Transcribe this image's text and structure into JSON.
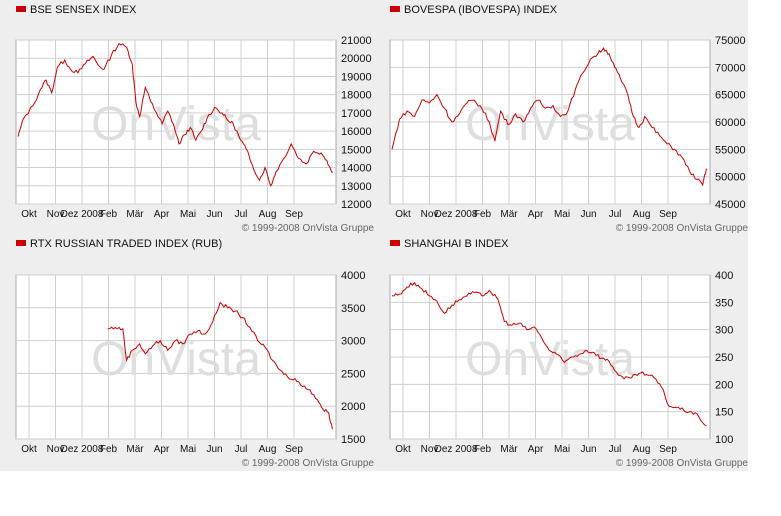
{
  "copyright": "© 1999-2008 OnVista Gruppe",
  "watermark": "OnVista",
  "colors": {
    "line": "#cc0000",
    "swatch": "#cc0000",
    "grid": "#cfcfcf",
    "frame": "#aaaaaa",
    "panel_bg": "#eeeeee",
    "plot_bg": "#ffffff",
    "watermark": "#dedede"
  },
  "chart_data": [
    {
      "type": "line",
      "title": "BSE SENSEX INDEX",
      "x_ticks": [
        "Okt",
        "Nov",
        "Dez 2008",
        "Feb",
        "Mär",
        "Apr",
        "Mai",
        "Jun",
        "Jul",
        "Aug",
        "Sep"
      ],
      "y_ticks": [
        21000,
        20000,
        19000,
        18000,
        17000,
        16000,
        15000,
        14000,
        13000,
        12000
      ],
      "ylim": [
        12000,
        21000
      ],
      "grid": true,
      "series": [
        {
          "points": [
            [
              0,
              15700
            ],
            [
              0.3,
              16700
            ],
            [
              0.8,
              17400
            ],
            [
              1.2,
              18300
            ],
            [
              1.5,
              18800
            ],
            [
              1.8,
              18100
            ],
            [
              2.1,
              19500
            ],
            [
              2.5,
              19900
            ],
            [
              2.8,
              19400
            ],
            [
              3.2,
              19200
            ],
            [
              3.6,
              19700
            ],
            [
              4.0,
              20100
            ],
            [
              4.3,
              19600
            ],
            [
              4.6,
              19400
            ],
            [
              5.0,
              20200
            ],
            [
              5.4,
              20800
            ],
            [
              5.8,
              20600
            ],
            [
              6.1,
              19700
            ],
            [
              6.3,
              17600
            ],
            [
              6.5,
              16800
            ],
            [
              6.8,
              18400
            ],
            [
              7.1,
              17600
            ],
            [
              7.4,
              17000
            ],
            [
              7.7,
              16400
            ],
            [
              8.0,
              17100
            ],
            [
              8.3,
              16400
            ],
            [
              8.6,
              15300
            ],
            [
              8.9,
              15800
            ],
            [
              9.2,
              16200
            ],
            [
              9.5,
              15500
            ],
            [
              9.8,
              16000
            ],
            [
              10.1,
              16700
            ],
            [
              10.5,
              17300
            ],
            [
              10.9,
              17000
            ],
            [
              11.2,
              16600
            ],
            [
              11.5,
              16400
            ],
            [
              11.9,
              15500
            ],
            [
              12.2,
              15000
            ],
            [
              12.5,
              14200
            ],
            [
              12.9,
              13300
            ],
            [
              13.2,
              14000
            ],
            [
              13.5,
              13000
            ],
            [
              13.8,
              13800
            ],
            [
              14.2,
              14500
            ],
            [
              14.6,
              15300
            ],
            [
              15.0,
              14500
            ],
            [
              15.4,
              14200
            ],
            [
              15.8,
              14900
            ],
            [
              16.2,
              14800
            ],
            [
              16.5,
              14400
            ],
            [
              16.8,
              13700
            ]
          ]
        }
      ]
    },
    {
      "type": "line",
      "title": "BOVESPA (IBOVESPA) INDEX",
      "x_ticks": [
        "Okt",
        "Nov",
        "Dez 2008",
        "Feb",
        "Mär",
        "Apr",
        "Mai",
        "Jun",
        "Jul",
        "Aug",
        "Sep"
      ],
      "y_ticks": [
        75000,
        70000,
        65000,
        60000,
        55000,
        50000,
        45000
      ],
      "ylim": [
        45000,
        75000
      ],
      "grid": true,
      "series": [
        {
          "points": [
            [
              0,
              55000
            ],
            [
              0.4,
              60500
            ],
            [
              0.8,
              62000
            ],
            [
              1.2,
              61000
            ],
            [
              1.6,
              64000
            ],
            [
              2.0,
              63500
            ],
            [
              2.4,
              65000
            ],
            [
              2.8,
              62500
            ],
            [
              3.2,
              60000
            ],
            [
              3.6,
              61500
            ],
            [
              4.0,
              63500
            ],
            [
              4.4,
              64000
            ],
            [
              4.8,
              62500
            ],
            [
              5.2,
              60000
            ],
            [
              5.5,
              56500
            ],
            [
              5.8,
              62000
            ],
            [
              6.2,
              59500
            ],
            [
              6.6,
              61500
            ],
            [
              7.0,
              60000
            ],
            [
              7.4,
              62500
            ],
            [
              7.8,
              64000
            ],
            [
              8.2,
              62500
            ],
            [
              8.6,
              63000
            ],
            [
              9.0,
              61000
            ],
            [
              9.4,
              62000
            ],
            [
              9.8,
              66000
            ],
            [
              10.2,
              69000
            ],
            [
              10.6,
              71500
            ],
            [
              11.0,
              72500
            ],
            [
              11.3,
              73500
            ],
            [
              11.6,
              72500
            ],
            [
              11.9,
              70000
            ],
            [
              12.2,
              68000
            ],
            [
              12.6,
              65000
            ],
            [
              12.9,
              61000
            ],
            [
              13.2,
              59000
            ],
            [
              13.5,
              61000
            ],
            [
              13.9,
              59000
            ],
            [
              14.3,
              57500
            ],
            [
              14.7,
              56000
            ],
            [
              15.1,
              55000
            ],
            [
              15.5,
              53500
            ],
            [
              15.9,
              51000
            ],
            [
              16.3,
              49500
            ],
            [
              16.6,
              48500
            ],
            [
              16.8,
              51500
            ]
          ]
        }
      ]
    },
    {
      "type": "line",
      "title": "RTX RUSSIAN TRADED INDEX (RUB)",
      "x_ticks": [
        "Okt",
        "Nov",
        "Dez 2008",
        "Feb",
        "Mär",
        "Apr",
        "Mai",
        "Jun",
        "Jul",
        "Aug",
        "Sep"
      ],
      "y_ticks": [
        4000,
        3500,
        3000,
        2500,
        2000,
        1500
      ],
      "ylim": [
        1500,
        4000
      ],
      "grid": true,
      "series": [
        {
          "points": [
            [
              4.8,
              3180
            ],
            [
              5.2,
              3200
            ],
            [
              5.6,
              3180
            ],
            [
              5.8,
              2700
            ],
            [
              6.1,
              2850
            ],
            [
              6.5,
              2950
            ],
            [
              6.8,
              2800
            ],
            [
              7.2,
              2920
            ],
            [
              7.6,
              3000
            ],
            [
              8.0,
              2850
            ],
            [
              8.4,
              3000
            ],
            [
              8.8,
              2950
            ],
            [
              9.2,
              3100
            ],
            [
              9.6,
              3150
            ],
            [
              10.0,
              3100
            ],
            [
              10.4,
              3280
            ],
            [
              10.8,
              3580
            ],
            [
              11.2,
              3500
            ],
            [
              11.6,
              3450
            ],
            [
              12.0,
              3350
            ],
            [
              12.4,
              3200
            ],
            [
              12.8,
              3000
            ],
            [
              13.2,
              2900
            ],
            [
              13.6,
              2700
            ],
            [
              14.0,
              2550
            ],
            [
              14.4,
              2450
            ],
            [
              14.8,
              2420
            ],
            [
              15.2,
              2300
            ],
            [
              15.6,
              2250
            ],
            [
              16.0,
              2100
            ],
            [
              16.3,
              1950
            ],
            [
              16.6,
              1900
            ],
            [
              16.8,
              1650
            ]
          ]
        }
      ]
    },
    {
      "type": "line",
      "title": "SHANGHAI B INDEX",
      "x_ticks": [
        "Okt",
        "Nov",
        "Dez 2008",
        "Feb",
        "Mär",
        "Apr",
        "Mai",
        "Jun",
        "Jul",
        "Aug",
        "Sep"
      ],
      "y_ticks": [
        400,
        350,
        300,
        250,
        200,
        150,
        100
      ],
      "ylim": [
        100,
        400
      ],
      "grid": true,
      "series": [
        {
          "points": [
            [
              0,
              362
            ],
            [
              0.4,
              365
            ],
            [
              0.8,
              378
            ],
            [
              1.2,
              386
            ],
            [
              1.6,
              375
            ],
            [
              2.0,
              362
            ],
            [
              2.4,
              352
            ],
            [
              2.8,
              330
            ],
            [
              3.2,
              345
            ],
            [
              3.6,
              355
            ],
            [
              4.0,
              362
            ],
            [
              4.4,
              368
            ],
            [
              4.8,
              362
            ],
            [
              5.2,
              372
            ],
            [
              5.6,
              358
            ],
            [
              5.8,
              340
            ],
            [
              6.0,
              315
            ],
            [
              6.4,
              308
            ],
            [
              6.8,
              312
            ],
            [
              7.2,
              300
            ],
            [
              7.6,
              305
            ],
            [
              8.0,
              285
            ],
            [
              8.4,
              262
            ],
            [
              8.8,
              255
            ],
            [
              9.2,
              240
            ],
            [
              9.6,
              250
            ],
            [
              10.0,
              255
            ],
            [
              10.4,
              262
            ],
            [
              10.8,
              258
            ],
            [
              11.2,
              248
            ],
            [
              11.6,
              242
            ],
            [
              12.0,
              222
            ],
            [
              12.4,
              210
            ],
            [
              12.8,
              212
            ],
            [
              13.2,
              220
            ],
            [
              13.6,
              218
            ],
            [
              14.0,
              212
            ],
            [
              14.4,
              195
            ],
            [
              14.8,
              160
            ],
            [
              15.2,
              158
            ],
            [
              15.6,
              152
            ],
            [
              16.0,
              150
            ],
            [
              16.4,
              140
            ],
            [
              16.8,
              124
            ]
          ]
        }
      ]
    }
  ]
}
